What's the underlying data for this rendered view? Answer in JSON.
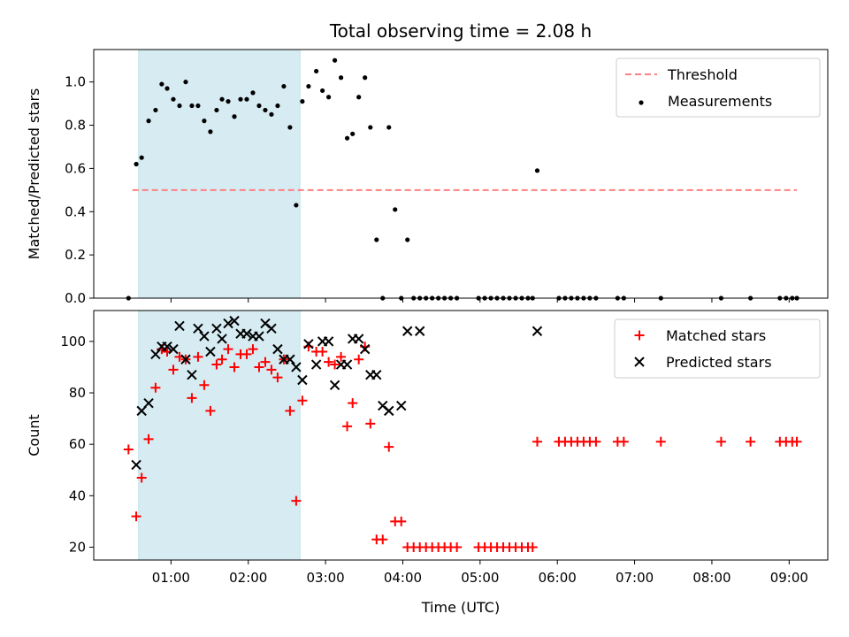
{
  "chart_data": {
    "title": "Total observing time = 2.08 h",
    "xlabel": "Time (UTC)",
    "x_unit": "hours UTC",
    "xlim": [
      0.0,
      9.5
    ],
    "x_ticks": [
      1,
      2,
      3,
      4,
      5,
      6,
      7,
      8,
      9
    ],
    "x_tick_labels": [
      "01:00",
      "02:00",
      "03:00",
      "04:00",
      "05:00",
      "06:00",
      "07:00",
      "08:00",
      "09:00"
    ],
    "shaded_interval": {
      "x": [
        0.58,
        2.67
      ],
      "color": "#add8e6"
    },
    "colors": {
      "threshold": "#ff8080",
      "matched": "#ff0000",
      "predicted": "#000000",
      "measurement": "#000000",
      "shade": "#add8e6"
    },
    "panels": [
      {
        "type": "scatter",
        "ylabel": "Matched/Predicted stars",
        "ylim": [
          0.0,
          1.15
        ],
        "y_ticks": [
          0.0,
          0.2,
          0.4,
          0.6,
          0.8,
          1.0
        ],
        "y_tick_labels": [
          "0.0",
          "0.2",
          "0.4",
          "0.6",
          "0.8",
          "1.0"
        ],
        "legend": {
          "placement": "upper right",
          "entries": [
            "Threshold",
            "Measurements"
          ]
        },
        "series": [
          {
            "name": "Threshold",
            "kind": "dashed-line",
            "x": [
              0.5,
              9.1
            ],
            "y": [
              0.5,
              0.5
            ]
          },
          {
            "name": "Measurements",
            "kind": "dot",
            "x": [
              0.45,
              0.55,
              0.62,
              0.71,
              0.8,
              0.88,
              0.95,
              1.03,
              1.11,
              1.19,
              1.27,
              1.35,
              1.43,
              1.51,
              1.59,
              1.66,
              1.74,
              1.82,
              1.9,
              1.98,
              2.06,
              2.14,
              2.22,
              2.3,
              2.38,
              2.46,
              2.54,
              2.62,
              2.7,
              2.78,
              2.88,
              2.96,
              3.04,
              3.12,
              3.2,
              3.28,
              3.35,
              3.43,
              3.51,
              3.58,
              3.66,
              3.74,
              3.82,
              3.9,
              3.98,
              4.06,
              4.14,
              4.22,
              4.3,
              4.38,
              4.46,
              4.54,
              4.62,
              4.7,
              4.98,
              5.06,
              5.14,
              5.22,
              5.3,
              5.38,
              5.46,
              5.54,
              5.62,
              5.68,
              5.74,
              6.02,
              6.1,
              6.18,
              6.26,
              6.34,
              6.42,
              6.5,
              6.78,
              6.86,
              7.34,
              8.12,
              8.5,
              8.88,
              8.96,
              9.04,
              9.1
            ],
            "y": [
              0.0,
              0.62,
              0.65,
              0.82,
              0.87,
              0.99,
              0.97,
              0.92,
              0.89,
              1.0,
              0.89,
              0.89,
              0.82,
              0.77,
              0.87,
              0.92,
              0.91,
              0.84,
              0.92,
              0.92,
              0.95,
              0.89,
              0.87,
              0.85,
              0.89,
              0.98,
              0.79,
              0.43,
              0.91,
              0.98,
              1.05,
              0.96,
              0.93,
              1.1,
              1.02,
              0.74,
              0.76,
              0.93,
              1.02,
              0.79,
              0.27,
              0.0,
              0.79,
              0.41,
              0.0,
              0.27,
              0.0,
              0.0,
              0.0,
              0.0,
              0.0,
              0.0,
              0.0,
              0.0,
              0.0,
              0.0,
              0.0,
              0.0,
              0.0,
              0.0,
              0.0,
              0.0,
              0.0,
              0.0,
              0.59,
              0.0,
              0.0,
              0.0,
              0.0,
              0.0,
              0.0,
              0.0,
              0.0,
              0.0,
              0.0,
              0.0,
              0.0,
              0.0,
              0.0,
              0.0,
              0.0
            ]
          }
        ]
      },
      {
        "type": "scatter",
        "ylabel": "Count",
        "ylim": [
          15,
          112
        ],
        "y_ticks": [
          20,
          40,
          60,
          80,
          100
        ],
        "y_tick_labels": [
          "20",
          "40",
          "60",
          "80",
          "100"
        ],
        "legend": {
          "placement": "upper right",
          "entries": [
            "Matched stars",
            "Predicted stars"
          ]
        },
        "series": [
          {
            "name": "Matched stars",
            "marker": "plus",
            "x": [
              0.45,
              0.55,
              0.62,
              0.71,
              0.8,
              0.88,
              0.95,
              1.03,
              1.11,
              1.19,
              1.27,
              1.35,
              1.43,
              1.51,
              1.59,
              1.66,
              1.74,
              1.82,
              1.9,
              1.98,
              2.06,
              2.14,
              2.22,
              2.3,
              2.38,
              2.46,
              2.54,
              2.62,
              2.7,
              2.78,
              2.88,
              2.96,
              3.04,
              3.12,
              3.2,
              3.28,
              3.35,
              3.43,
              3.51,
              3.58,
              3.66,
              3.74,
              3.82,
              3.9,
              3.98,
              4.06,
              4.14,
              4.22,
              4.3,
              4.38,
              4.46,
              4.54,
              4.62,
              4.7,
              4.98,
              5.06,
              5.14,
              5.22,
              5.3,
              5.38,
              5.46,
              5.54,
              5.62,
              5.68,
              5.74,
              6.02,
              6.1,
              6.18,
              6.26,
              6.34,
              6.42,
              6.5,
              6.78,
              6.86,
              7.34,
              8.12,
              8.5,
              8.88,
              8.96,
              9.04,
              9.1
            ],
            "y": [
              58,
              32,
              47,
              62,
              82,
              97,
              96,
              89,
              94,
              93,
              78,
              94,
              83,
              73,
              91,
              93,
              97,
              90,
              95,
              95,
              97,
              90,
              92,
              89,
              86,
              93,
              73,
              38,
              77,
              98,
              96,
              96,
              92,
              91,
              94,
              67,
              76,
              93,
              98,
              68,
              23,
              23,
              59,
              30,
              30,
              20,
              20,
              20,
              20,
              20,
              20,
              20,
              20,
              20,
              20,
              20,
              20,
              20,
              20,
              20,
              20,
              20,
              20,
              20,
              61,
              61,
              61,
              61,
              61,
              61,
              61,
              61,
              61,
              61,
              61,
              61,
              61,
              61,
              61,
              61,
              61
            ]
          },
          {
            "name": "Predicted stars",
            "marker": "x",
            "x": [
              0.55,
              0.62,
              0.71,
              0.8,
              0.88,
              0.95,
              1.03,
              1.11,
              1.19,
              1.27,
              1.35,
              1.43,
              1.51,
              1.59,
              1.66,
              1.74,
              1.82,
              1.9,
              1.98,
              2.06,
              2.14,
              2.22,
              2.3,
              2.38,
              2.46,
              2.54,
              2.62,
              2.7,
              2.78,
              2.88,
              2.96,
              3.04,
              3.12,
              3.2,
              3.28,
              3.35,
              3.43,
              3.51,
              3.58,
              3.66,
              3.74,
              3.82,
              3.98,
              4.06,
              4.22,
              5.74
            ],
            "y": [
              52,
              73,
              76,
              95,
              98,
              98,
              97,
              106,
              93,
              87,
              105,
              102,
              96,
              105,
              101,
              107,
              108,
              103,
              103,
              102,
              102,
              107,
              105,
              97,
              93,
              93,
              90,
              85,
              99,
              91,
              100,
              100,
              83,
              91,
              91,
              101,
              101,
              97,
              87,
              87,
              75,
              73,
              75,
              104,
              104,
              104
            ]
          }
        ]
      }
    ]
  }
}
